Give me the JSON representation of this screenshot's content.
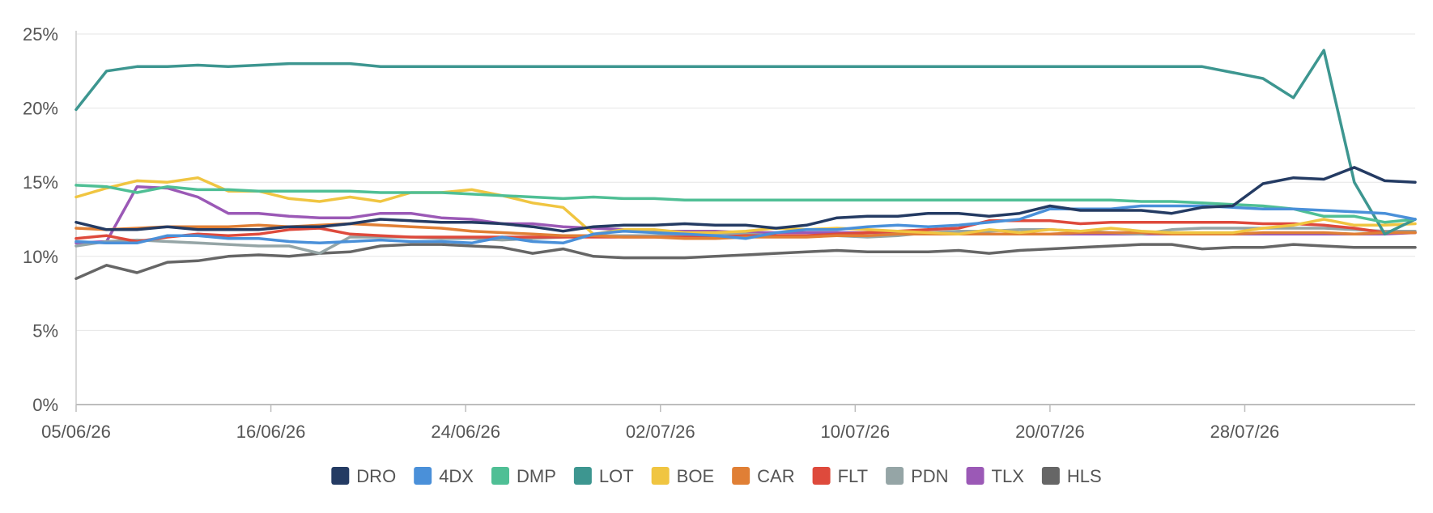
{
  "chart_data": {
    "type": "line",
    "title": "",
    "xlabel": "",
    "ylabel": "",
    "ylim": [
      0,
      25
    ],
    "yticks": [
      {
        "value": 0,
        "label": "0%"
      },
      {
        "value": 5,
        "label": "5%"
      },
      {
        "value": 10,
        "label": "10%"
      },
      {
        "value": 15,
        "label": "15%"
      },
      {
        "value": 20,
        "label": "20%"
      },
      {
        "value": 25,
        "label": "25%"
      }
    ],
    "xticks": [
      {
        "index": 0,
        "label": "05/06/26"
      },
      {
        "index": 8,
        "label": "16/06/26"
      },
      {
        "index": 16,
        "label": "24/06/26"
      },
      {
        "index": 24,
        "label": "02/07/26"
      },
      {
        "index": 32,
        "label": "10/07/26"
      },
      {
        "index": 40,
        "label": "20/07/26"
      },
      {
        "index": 48,
        "label": "28/07/26"
      }
    ],
    "x_count": 56,
    "grid": "horizontal",
    "legend_position": "bottom",
    "series": [
      {
        "name": "DRO",
        "color": "#243b63",
        "values": [
          12.3,
          11.8,
          11.8,
          12.0,
          11.8,
          11.8,
          11.8,
          12.0,
          12.0,
          12.2,
          12.5,
          12.4,
          12.3,
          12.3,
          12.2,
          12.0,
          11.7,
          12.0,
          12.1,
          12.1,
          12.2,
          12.1,
          12.1,
          11.9,
          12.1,
          12.6,
          12.7,
          12.7,
          12.9,
          12.9,
          12.7,
          12.9,
          13.4,
          13.1,
          13.1,
          13.1,
          12.9,
          13.3,
          13.4,
          14.9,
          15.3,
          15.2,
          16.0,
          15.1,
          15.0
        ]
      },
      {
        "name": "4DX",
        "color": "#4a90d9",
        "values": [
          11.0,
          10.9,
          10.9,
          11.4,
          11.4,
          11.2,
          11.2,
          11.0,
          10.9,
          11.0,
          11.1,
          11.0,
          11.0,
          10.9,
          11.3,
          11.0,
          10.9,
          11.5,
          11.7,
          11.6,
          11.5,
          11.4,
          11.2,
          11.6,
          11.8,
          11.8,
          12.0,
          12.1,
          12.0,
          12.1,
          12.3,
          12.5,
          13.2,
          13.2,
          13.2,
          13.4,
          13.4,
          13.4,
          13.3,
          13.2,
          13.2,
          13.1,
          13.0,
          12.9,
          12.5
        ]
      },
      {
        "name": "DMP",
        "color": "#4fbf95",
        "values": [
          14.8,
          14.7,
          14.3,
          14.7,
          14.5,
          14.5,
          14.4,
          14.4,
          14.4,
          14.4,
          14.3,
          14.3,
          14.3,
          14.2,
          14.1,
          14.0,
          13.9,
          14.0,
          13.9,
          13.9,
          13.8,
          13.8,
          13.8,
          13.8,
          13.8,
          13.8,
          13.8,
          13.8,
          13.8,
          13.8,
          13.8,
          13.8,
          13.8,
          13.8,
          13.8,
          13.7,
          13.7,
          13.6,
          13.5,
          13.4,
          13.2,
          12.7,
          12.7,
          12.3,
          12.5
        ]
      },
      {
        "name": "LOT",
        "color": "#3d9690",
        "values": [
          19.9,
          22.5,
          22.8,
          22.8,
          22.9,
          22.8,
          22.9,
          23.0,
          23.0,
          23.0,
          22.8,
          22.8,
          22.8,
          22.8,
          22.8,
          22.8,
          22.8,
          22.8,
          22.8,
          22.8,
          22.8,
          22.8,
          22.8,
          22.8,
          22.8,
          22.8,
          22.8,
          22.8,
          22.8,
          22.8,
          22.8,
          22.8,
          22.8,
          22.8,
          22.8,
          22.8,
          22.8,
          22.8,
          22.4,
          22.0,
          20.7,
          23.9,
          15.0,
          11.5,
          12.5
        ]
      },
      {
        "name": "BOE",
        "color": "#f0c541",
        "values": [
          14.0,
          14.6,
          15.1,
          15.0,
          15.3,
          14.4,
          14.4,
          13.9,
          13.7,
          14.0,
          13.7,
          14.3,
          14.3,
          14.5,
          14.1,
          13.6,
          13.3,
          11.5,
          11.8,
          11.8,
          11.6,
          11.6,
          11.7,
          11.9,
          11.8,
          11.9,
          11.8,
          11.7,
          11.6,
          11.5,
          11.8,
          11.6,
          11.8,
          11.7,
          11.9,
          11.7,
          11.6,
          11.6,
          11.6,
          11.9,
          12.1,
          12.5,
          12.1,
          12.1,
          12.2
        ]
      },
      {
        "name": "CAR",
        "color": "#e07f35",
        "values": [
          11.9,
          11.8,
          11.9,
          12.0,
          12.0,
          12.0,
          12.1,
          12.0,
          12.1,
          12.2,
          12.1,
          12.0,
          11.9,
          11.7,
          11.6,
          11.5,
          11.4,
          11.4,
          11.3,
          11.3,
          11.2,
          11.2,
          11.3,
          11.3,
          11.3,
          11.4,
          11.4,
          11.5,
          11.5,
          11.5,
          11.5,
          11.5,
          11.5,
          11.6,
          11.6,
          11.6,
          11.5,
          11.5,
          11.5,
          11.6,
          11.6,
          11.6,
          11.5,
          11.6,
          11.6
        ]
      },
      {
        "name": "FLT",
        "color": "#de4a3c",
        "values": [
          11.2,
          11.4,
          11.0,
          11.3,
          11.5,
          11.4,
          11.5,
          11.8,
          11.9,
          11.5,
          11.4,
          11.3,
          11.3,
          11.3,
          11.3,
          11.3,
          11.3,
          11.3,
          11.3,
          11.3,
          11.3,
          11.3,
          11.4,
          11.4,
          11.4,
          11.5,
          11.6,
          11.7,
          11.8,
          11.9,
          12.4,
          12.4,
          12.4,
          12.2,
          12.3,
          12.3,
          12.3,
          12.3,
          12.3,
          12.2,
          12.2,
          12.1,
          11.9,
          11.6,
          11.6
        ]
      },
      {
        "name": "PDN",
        "color": "#95a5a6",
        "values": [
          10.7,
          11.0,
          11.1,
          11.0,
          10.9,
          10.8,
          10.7,
          10.7,
          10.2,
          11.3,
          11.3,
          11.3,
          11.2,
          11.2,
          11.1,
          11.2,
          11.3,
          11.4,
          11.4,
          11.4,
          11.4,
          11.5,
          11.5,
          11.4,
          11.4,
          11.4,
          11.3,
          11.4,
          11.6,
          11.7,
          11.7,
          11.8,
          11.8,
          11.7,
          11.6,
          11.5,
          11.8,
          11.9,
          11.9,
          11.9,
          11.9,
          11.9,
          11.8,
          11.7,
          11.7
        ]
      },
      {
        "name": "TLX",
        "color": "#9b59b6",
        "values": [
          10.9,
          11.0,
          14.7,
          14.6,
          14.0,
          12.9,
          12.9,
          12.7,
          12.6,
          12.6,
          12.9,
          12.9,
          12.6,
          12.5,
          12.2,
          12.2,
          12.0,
          11.9,
          11.8,
          11.7,
          11.7,
          11.7,
          11.6,
          11.6,
          11.6,
          11.6,
          11.6,
          11.6,
          11.6,
          11.5,
          11.5,
          11.5,
          11.5,
          11.5,
          11.5,
          11.5,
          11.5,
          11.5,
          11.5,
          11.5,
          11.5,
          11.5,
          11.5,
          11.5,
          11.6
        ]
      },
      {
        "name": "HLS",
        "color": "#666666",
        "values": [
          8.5,
          9.4,
          8.9,
          9.6,
          9.7,
          10.0,
          10.1,
          10.0,
          10.2,
          10.3,
          10.7,
          10.8,
          10.8,
          10.7,
          10.6,
          10.2,
          10.5,
          10.0,
          9.9,
          9.9,
          9.9,
          10.0,
          10.1,
          10.2,
          10.3,
          10.4,
          10.3,
          10.3,
          10.3,
          10.4,
          10.2,
          10.4,
          10.5,
          10.6,
          10.7,
          10.8,
          10.8,
          10.5,
          10.6,
          10.6,
          10.8,
          10.7,
          10.6,
          10.6,
          10.6
        ]
      }
    ]
  }
}
